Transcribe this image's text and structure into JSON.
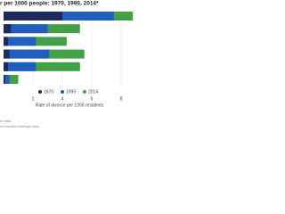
{
  "chart_data": {
    "type": "bar",
    "orientation": "horizontal",
    "overlap": true,
    "title": "r per 1000 people: 1970, 1995, 2014*",
    "x_label": "Rate of divorce per 1000 residents",
    "categories": [
      null,
      null,
      null,
      null,
      null,
      null
    ],
    "series": [
      {
        "name": "1970",
        "color": "#1f2a5c",
        "values": [
          4.0,
          0.5,
          0.3,
          0.4,
          0.3,
          0.1
        ]
      },
      {
        "name": "1995",
        "color": "#1f5fbf",
        "values": [
          7.5,
          3.0,
          2.2,
          3.1,
          2.2,
          0.4
        ]
      },
      {
        "name": "2014",
        "color": "#44a047",
        "values": [
          8.8,
          5.2,
          4.3,
          5.5,
          5.2,
          1.0
        ]
      }
    ],
    "xlim": [
      0,
      9
    ],
    "xticks": [
      2,
      4,
      6,
      8
    ],
    "grid": true,
    "footnotes": [
      "of data",
      "nrecorded marriage data"
    ]
  }
}
